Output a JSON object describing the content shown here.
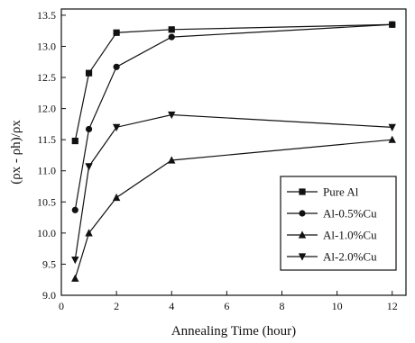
{
  "chart_data": {
    "type": "line",
    "title": "",
    "xlabel": "Annealing Time (hour)",
    "ylabel": "(ρx - ρh)/ρx",
    "xlim": [
      0,
      12.5
    ],
    "ylim": [
      9.0,
      13.6
    ],
    "xticks": [
      0,
      2,
      4,
      6,
      8,
      10,
      12
    ],
    "yticks": [
      9.0,
      9.5,
      10.0,
      10.5,
      11.0,
      11.5,
      12.0,
      12.5,
      13.0,
      13.5
    ],
    "grid": false,
    "legend_position": "bottom-right",
    "series": [
      {
        "name": "Pure Al",
        "marker": "square",
        "x": [
          0.5,
          1,
          2,
          4,
          12
        ],
        "y": [
          11.48,
          12.57,
          13.22,
          13.27,
          13.35
        ]
      },
      {
        "name": "Al-0.5%Cu",
        "marker": "circle",
        "x": [
          0.5,
          1,
          2,
          4,
          12
        ],
        "y": [
          10.37,
          11.67,
          12.67,
          13.15,
          13.35
        ]
      },
      {
        "name": "Al-1.0%Cu",
        "marker": "triangle-up",
        "x": [
          0.5,
          1,
          2,
          4,
          12
        ],
        "y": [
          9.27,
          10.0,
          10.57,
          11.17,
          11.5
        ]
      },
      {
        "name": "Al-2.0%Cu",
        "marker": "triangle-down",
        "x": [
          0.5,
          1,
          2,
          4,
          12
        ],
        "y": [
          9.57,
          11.07,
          11.7,
          11.9,
          11.7
        ]
      }
    ]
  }
}
